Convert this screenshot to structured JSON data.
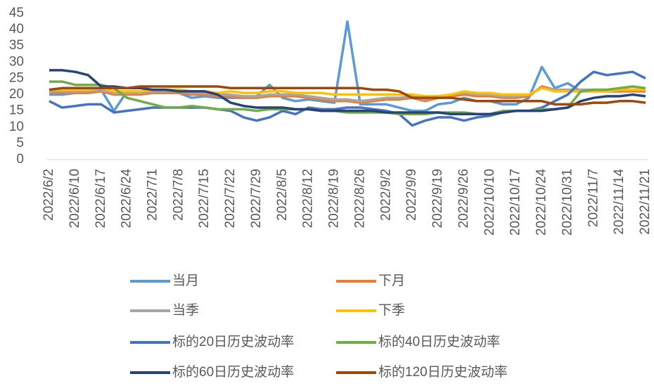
{
  "chart_data": {
    "type": "line",
    "categories": [
      "2022/6/2",
      null,
      "2022/6/10",
      null,
      "2022/6/17",
      null,
      "2022/6/24",
      null,
      "2022/7/1",
      null,
      "2022/7/8",
      null,
      "2022/7/15",
      null,
      "2022/7/22",
      null,
      "2022/7/29",
      null,
      "2022/8/5",
      null,
      "2022/8/12",
      null,
      "2022/8/19",
      null,
      "2022/8/26",
      null,
      "2022/9/2",
      null,
      "2022/9/9",
      null,
      "2022/9/19",
      null,
      "2022/9/26",
      null,
      "2022/10/10",
      null,
      "2022/10/17",
      null,
      "2022/10/24",
      null,
      "2022/10/31",
      null,
      "2022/11/7",
      null,
      "2022/11/14",
      null,
      "2022/11/21"
    ],
    "series": [
      {
        "name": "当月",
        "color": "#5b9bd5",
        "values": [
          20,
          20,
          20.5,
          21,
          21.5,
          15,
          21,
          21,
          21,
          21,
          20.5,
          19,
          19.5,
          19,
          19,
          19,
          19.5,
          23,
          19,
          18,
          18.5,
          18,
          17.5,
          42.5,
          17,
          17,
          17,
          16,
          15,
          15,
          17,
          17.5,
          19,
          18,
          18,
          17,
          17,
          19,
          28.5,
          22,
          23.5,
          21,
          21,
          21,
          21,
          21,
          21
        ]
      },
      {
        "name": "下月",
        "color": "#ed7d31",
        "values": [
          20.5,
          20.5,
          20.5,
          20.5,
          21,
          20,
          20,
          20,
          20.5,
          20.5,
          20.5,
          20,
          20,
          19.5,
          19.5,
          19,
          19,
          19.5,
          19.5,
          19.5,
          19,
          18.5,
          18,
          18,
          17.5,
          18,
          18.5,
          18.5,
          19,
          18,
          19,
          19.5,
          20,
          19.5,
          19.5,
          19,
          19,
          19.5,
          22.5,
          21.5,
          21,
          21,
          21,
          21,
          21,
          21,
          21
        ]
      },
      {
        "name": "当季",
        "color": "#a5a5a5",
        "values": [
          21,
          21,
          21,
          21,
          21.5,
          20.5,
          20.5,
          20.5,
          21,
          21,
          21,
          20.5,
          20.5,
          20,
          20,
          19.5,
          19.5,
          20,
          20,
          20,
          19.5,
          19,
          18.5,
          18.5,
          18,
          18.5,
          19,
          19,
          19.5,
          18.5,
          19.5,
          20,
          20.5,
          20,
          20,
          19.5,
          19.5,
          20,
          22,
          21.5,
          21.5,
          21.5,
          21.5,
          21.5,
          21.5,
          21.5,
          21.5
        ]
      },
      {
        "name": "下季",
        "color": "#ffc000",
        "values": [
          21.5,
          21.5,
          21.5,
          21.5,
          22,
          21,
          21,
          21,
          21.5,
          21.5,
          21.5,
          21,
          21,
          20.5,
          21,
          20.5,
          20.5,
          21,
          21,
          20.5,
          20.5,
          20.5,
          20,
          20,
          20,
          20,
          20,
          20,
          20,
          19.5,
          19.5,
          20,
          21,
          20.5,
          20.5,
          20,
          20,
          20,
          22,
          21,
          21,
          21,
          21,
          21,
          21.5,
          21.5,
          21.5
        ]
      },
      {
        "name": "标的20日历史波动率",
        "color": "#4472c4",
        "values": [
          18,
          16,
          16.5,
          17,
          17,
          14.5,
          15,
          15.5,
          16,
          16,
          16,
          16,
          16,
          15.5,
          15,
          13,
          12,
          13,
          15,
          14,
          16,
          15.5,
          15.5,
          16,
          16,
          15.5,
          15,
          14,
          10.5,
          12,
          13,
          13,
          12,
          13,
          13.5,
          14.5,
          15,
          15,
          16,
          18,
          20,
          24,
          27,
          26,
          26.5,
          27,
          25
        ]
      },
      {
        "name": "标的40日历史波动率",
        "color": "#70ad47",
        "values": [
          24,
          24,
          23,
          23,
          23,
          22,
          19,
          18,
          17,
          16,
          16,
          16.5,
          16,
          15.5,
          15.5,
          15.5,
          15,
          15.5,
          15.5,
          15.5,
          15.5,
          15,
          15,
          14.5,
          14.5,
          14.5,
          14.5,
          14,
          14,
          14,
          14.5,
          14.5,
          14.5,
          14,
          14,
          15,
          15,
          15,
          15.5,
          15.5,
          16,
          21,
          21.5,
          21.5,
          22,
          22.5,
          22
        ]
      },
      {
        "name": "标的60日历史波动率",
        "color": "#264478",
        "values": [
          27.5,
          27.5,
          27,
          26,
          22.5,
          22.5,
          22,
          22,
          21.5,
          21.5,
          21,
          21,
          21,
          20,
          17.5,
          16.5,
          16,
          16,
          16,
          15.5,
          15.5,
          15,
          15,
          15,
          15,
          15,
          14.5,
          14.5,
          14.5,
          14.5,
          14.5,
          14,
          14,
          14,
          14,
          14.5,
          15,
          15,
          15,
          15.5,
          16,
          18,
          19,
          19.5,
          19.5,
          20,
          19.5
        ]
      },
      {
        "name": "标的120日历史波动率",
        "color": "#9e480e",
        "values": [
          21.5,
          22,
          22,
          22,
          22,
          22,
          22,
          22.5,
          22.5,
          22.5,
          22.5,
          22.5,
          22.5,
          22.5,
          22,
          22,
          22,
          22,
          22,
          22,
          22,
          22,
          22,
          22,
          22,
          21.5,
          21.5,
          21,
          19,
          19,
          19,
          19,
          18.5,
          18,
          18,
          18,
          18,
          18,
          18,
          17,
          17,
          17,
          17.5,
          17.5,
          18,
          18,
          17.5
        ]
      }
    ],
    "ylim": [
      0,
      45
    ],
    "yticks": [
      0,
      5,
      10,
      15,
      20,
      25,
      30,
      35,
      40,
      45
    ]
  }
}
